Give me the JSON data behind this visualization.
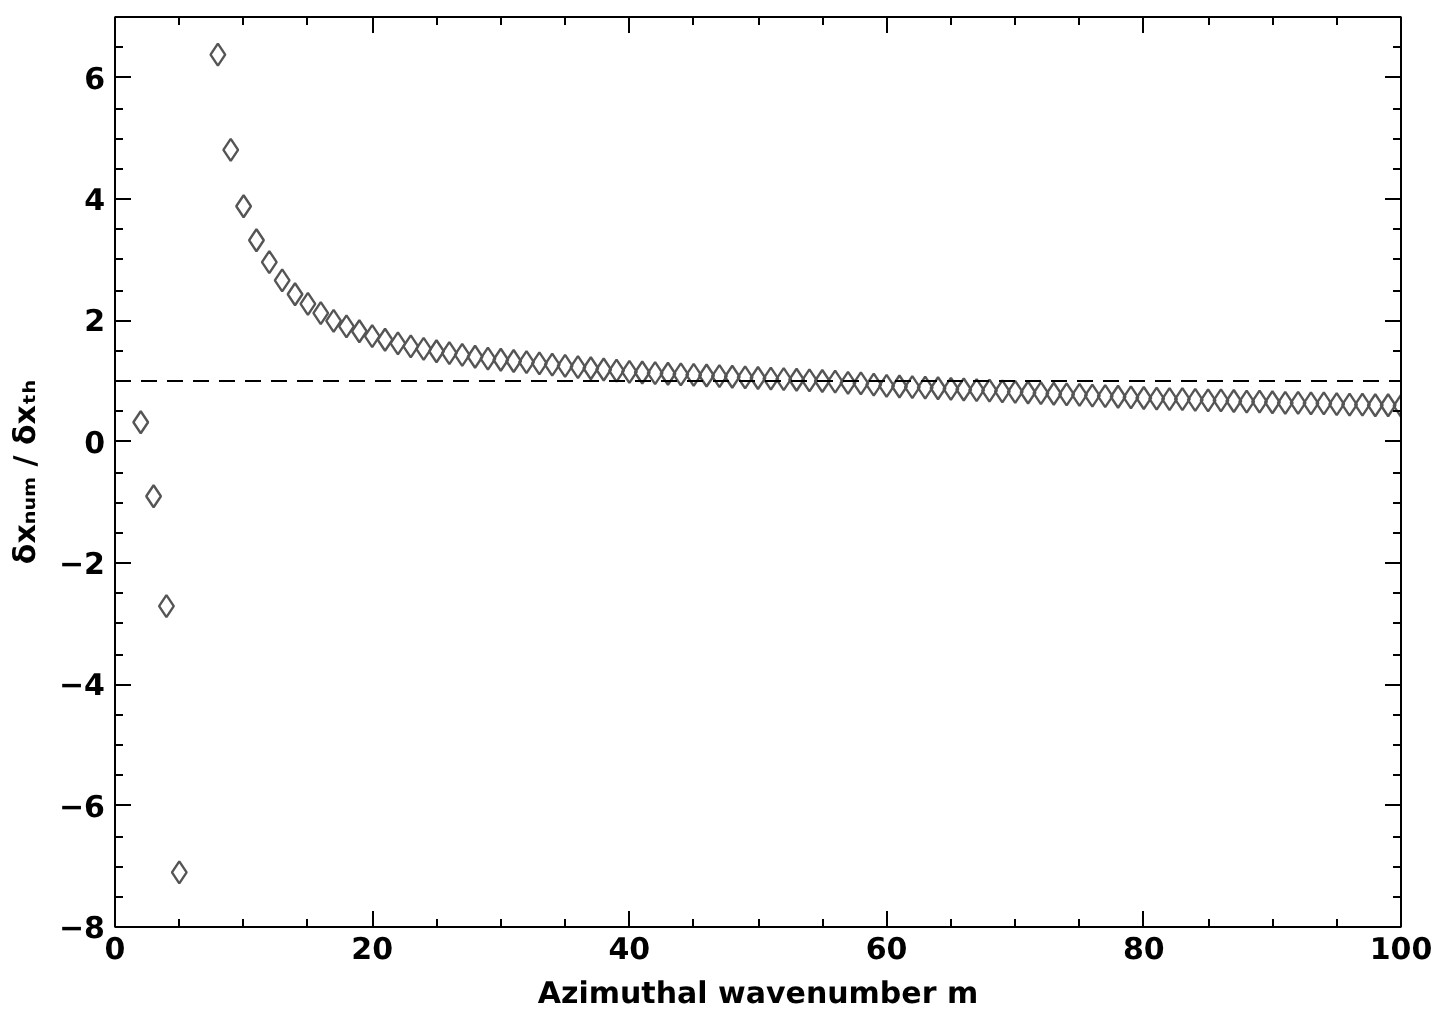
{
  "chart_data": {
    "type": "scatter",
    "xlabel": "Azimuthal wavenumber m",
    "ylabel": "δxₙᵤₘ / δxₜₕ",
    "x": [
      2,
      3,
      4,
      5,
      8,
      9,
      10,
      11,
      12,
      13,
      14,
      15,
      16,
      17,
      18,
      19,
      20,
      21,
      22,
      23,
      24,
      25,
      26,
      27,
      28,
      29,
      30,
      31,
      32,
      33,
      34,
      35,
      36,
      37,
      38,
      39,
      40,
      41,
      42,
      43,
      44,
      45,
      46,
      47,
      48,
      49,
      50,
      51,
      52,
      53,
      54,
      55,
      56,
      57,
      58,
      59,
      60,
      61,
      62,
      63,
      64,
      65,
      66,
      67,
      68,
      69,
      70,
      71,
      72,
      73,
      74,
      75,
      76,
      77,
      78,
      79,
      80,
      81,
      82,
      83,
      84,
      85,
      86,
      87,
      88,
      89,
      90,
      91,
      92,
      93,
      94,
      95,
      96,
      97,
      98,
      99,
      100
    ],
    "series": [
      {
        "color": "#555555",
        "values": [
          0.32,
          -0.9,
          -2.71,
          -7.1,
          6.38,
          4.81,
          3.88,
          3.32,
          2.96,
          2.66,
          2.43,
          2.27,
          2.12,
          1.99,
          1.9,
          1.82,
          1.74,
          1.68,
          1.62,
          1.57,
          1.53,
          1.49,
          1.46,
          1.43,
          1.4,
          1.37,
          1.35,
          1.33,
          1.31,
          1.29,
          1.27,
          1.25,
          1.23,
          1.21,
          1.19,
          1.17,
          1.15,
          1.14,
          1.13,
          1.12,
          1.11,
          1.1,
          1.09,
          1.08,
          1.07,
          1.06,
          1.05,
          1.04,
          1.03,
          1.02,
          1.01,
          1.0,
          0.99,
          0.97,
          0.96,
          0.94,
          0.92,
          0.91,
          0.9,
          0.89,
          0.88,
          0.87,
          0.86,
          0.85,
          0.84,
          0.83,
          0.82,
          0.81,
          0.8,
          0.79,
          0.78,
          0.77,
          0.76,
          0.75,
          0.74,
          0.73,
          0.72,
          0.71,
          0.7,
          0.7,
          0.69,
          0.68,
          0.68,
          0.67,
          0.66,
          0.66,
          0.65,
          0.64,
          0.64,
          0.63,
          0.63,
          0.62,
          0.61,
          0.61,
          0.6,
          0.6,
          0.59
        ]
      }
    ],
    "xlim": [
      0,
      100
    ],
    "xticks": [
      0,
      20,
      40,
      60,
      80,
      100
    ],
    "ylim": [
      -8,
      7
    ],
    "yticks": [
      -8,
      -6,
      -4,
      -2,
      0,
      2,
      4,
      6
    ],
    "ref_lines": [
      {
        "axis": "y",
        "value": 1,
        "color": "#000000",
        "line_style": "dashed"
      }
    ],
    "marker": "diamond",
    "grid": false
  }
}
